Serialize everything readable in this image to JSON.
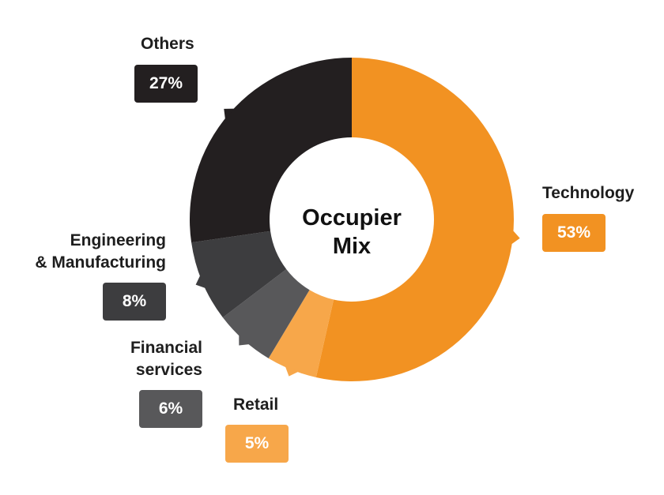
{
  "center_title": [
    "Occupier",
    "Mix"
  ],
  "chart_data": {
    "type": "pie",
    "donut": true,
    "categories": [
      "Technology",
      "Retail",
      "Financial services",
      "Engineering & Manufacturing",
      "Others"
    ],
    "values": [
      53,
      5,
      6,
      8,
      27
    ],
    "value_labels": [
      "53%",
      "5%",
      "6%",
      "8%",
      "27%"
    ],
    "colors": [
      "#F29222",
      "#F7A74A",
      "#58585A",
      "#3D3D3F",
      "#231F20"
    ],
    "label_lines": {
      "technology": [
        "Technology"
      ],
      "retail": [
        "Retail"
      ],
      "financial": [
        "Financial",
        "services"
      ],
      "engineering": [
        "Engineering",
        "& Manufacturing"
      ],
      "others": [
        "Others"
      ]
    }
  }
}
